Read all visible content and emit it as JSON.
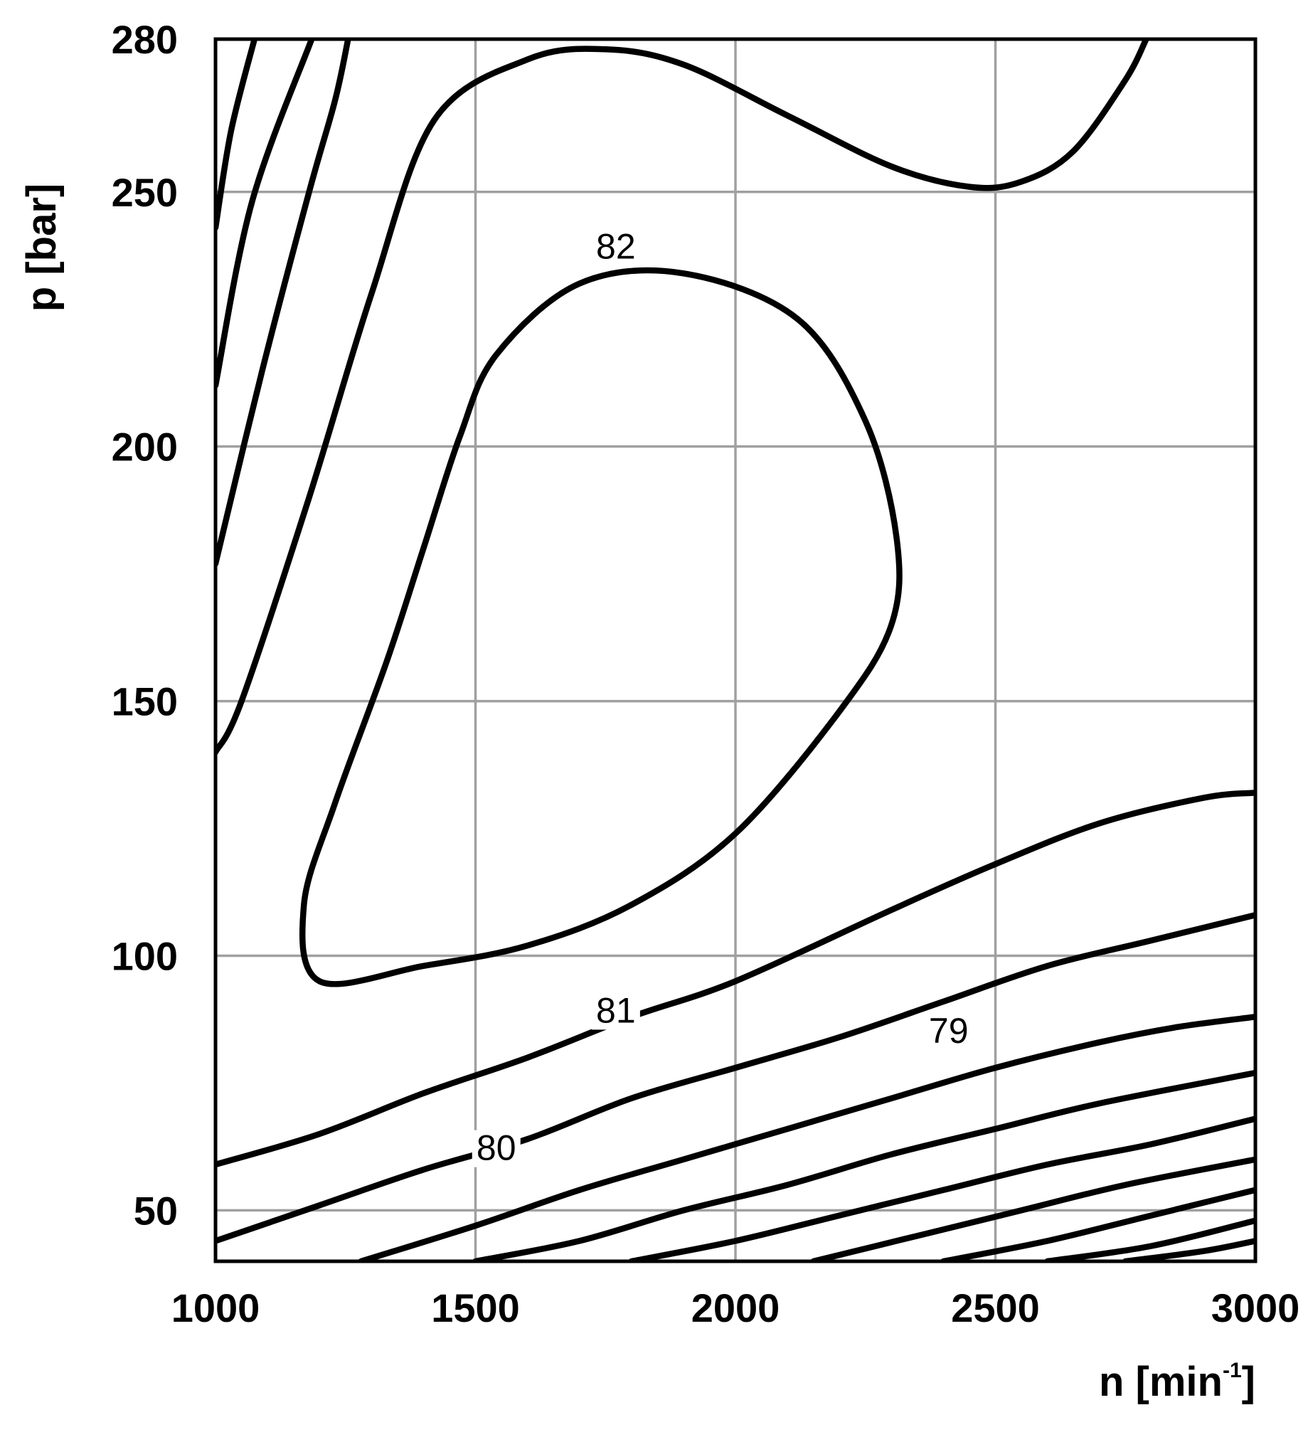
{
  "chart_data": {
    "type": "contour",
    "xlabel": "n [min",
    "xlabel_sup": "-1",
    "xlabel_close": "]",
    "ylabel": "p [bar]",
    "xlim": [
      1000,
      3000
    ],
    "ylim": [
      40,
      280
    ],
    "x_ticks": [
      1000,
      1500,
      2000,
      2500,
      3000
    ],
    "y_ticks": [
      50,
      100,
      150,
      200,
      250,
      280
    ],
    "grid": true,
    "contour_labels": [
      {
        "text": "82",
        "x": 1770,
        "y": 238
      },
      {
        "text": "81",
        "x": 1770,
        "y": 88
      },
      {
        "text": "80",
        "x": 1540,
        "y": 61
      },
      {
        "text": "79",
        "x": 2410,
        "y": 84
      }
    ],
    "contours": [
      {
        "name": "c1",
        "points": [
          [
            1000,
            243
          ],
          [
            1030,
            262
          ],
          [
            1075,
            280
          ]
        ]
      },
      {
        "name": "c2",
        "points": [
          [
            1000,
            212
          ],
          [
            1070,
            248
          ],
          [
            1185,
            280
          ]
        ]
      },
      {
        "name": "c3",
        "points": [
          [
            1000,
            177
          ],
          [
            1090,
            215
          ],
          [
            1180,
            250
          ],
          [
            1230,
            268
          ],
          [
            1255,
            280
          ]
        ]
      },
      {
        "name": "c4",
        "points": [
          [
            1000,
            140
          ],
          [
            1050,
            150
          ],
          [
            1180,
            190
          ],
          [
            1300,
            230
          ],
          [
            1420,
            264
          ],
          [
            1600,
            276
          ],
          [
            1750,
            278
          ],
          [
            1900,
            275
          ],
          [
            2100,
            265
          ],
          [
            2300,
            255
          ],
          [
            2450,
            251
          ],
          [
            2550,
            252
          ],
          [
            2650,
            258
          ],
          [
            2750,
            272
          ],
          [
            2790,
            280
          ]
        ]
      },
      {
        "name": "82",
        "closed": true,
        "points": [
          [
            1170,
            110
          ],
          [
            1200,
            95
          ],
          [
            1400,
            98
          ],
          [
            1600,
            102
          ],
          [
            1800,
            110
          ],
          [
            2000,
            124
          ],
          [
            2200,
            148
          ],
          [
            2300,
            165
          ],
          [
            2310,
            182
          ],
          [
            2250,
            205
          ],
          [
            2120,
            225
          ],
          [
            1900,
            234
          ],
          [
            1700,
            232
          ],
          [
            1540,
            218
          ],
          [
            1470,
            202
          ],
          [
            1400,
            180
          ],
          [
            1330,
            158
          ],
          [
            1230,
            130
          ]
        ]
      },
      {
        "name": "81",
        "points": [
          [
            1000,
            59
          ],
          [
            1200,
            65
          ],
          [
            1400,
            73
          ],
          [
            1600,
            80
          ],
          [
            1800,
            88
          ],
          [
            2000,
            95
          ],
          [
            2300,
            109
          ],
          [
            2500,
            118
          ],
          [
            2700,
            126
          ],
          [
            2900,
            131
          ],
          [
            3000,
            132
          ]
        ]
      },
      {
        "name": "80",
        "points": [
          [
            1000,
            44
          ],
          [
            1200,
            51
          ],
          [
            1400,
            58
          ],
          [
            1600,
            64
          ],
          [
            1800,
            72
          ],
          [
            2000,
            78
          ],
          [
            2200,
            84
          ],
          [
            2400,
            91
          ],
          [
            2600,
            98
          ],
          [
            2800,
            103
          ],
          [
            3000,
            108
          ]
        ]
      },
      {
        "name": "79",
        "points": [
          [
            1280,
            40
          ],
          [
            1500,
            47
          ],
          [
            1700,
            54
          ],
          [
            1900,
            60
          ],
          [
            2100,
            66
          ],
          [
            2300,
            72
          ],
          [
            2500,
            78
          ],
          [
            2700,
            83
          ],
          [
            2850,
            86
          ],
          [
            3000,
            88
          ]
        ]
      },
      {
        "name": "c8",
        "points": [
          [
            1500,
            40
          ],
          [
            1700,
            44
          ],
          [
            1900,
            50
          ],
          [
            2100,
            55
          ],
          [
            2300,
            61
          ],
          [
            2500,
            66
          ],
          [
            2700,
            71
          ],
          [
            3000,
            77
          ]
        ]
      },
      {
        "name": "c9",
        "points": [
          [
            1800,
            40
          ],
          [
            2000,
            44
          ],
          [
            2200,
            49
          ],
          [
            2400,
            54
          ],
          [
            2600,
            59
          ],
          [
            2800,
            63
          ],
          [
            3000,
            68
          ]
        ]
      },
      {
        "name": "c10",
        "points": [
          [
            2150,
            40
          ],
          [
            2350,
            45
          ],
          [
            2550,
            50
          ],
          [
            2750,
            55
          ],
          [
            3000,
            60
          ]
        ]
      },
      {
        "name": "c11",
        "points": [
          [
            2400,
            40
          ],
          [
            2600,
            44
          ],
          [
            2800,
            49
          ],
          [
            3000,
            54
          ]
        ]
      },
      {
        "name": "c12",
        "points": [
          [
            2600,
            40
          ],
          [
            2800,
            43
          ],
          [
            3000,
            48
          ]
        ]
      },
      {
        "name": "c13",
        "points": [
          [
            2750,
            40
          ],
          [
            2900,
            42
          ],
          [
            3000,
            44
          ]
        ]
      }
    ]
  }
}
